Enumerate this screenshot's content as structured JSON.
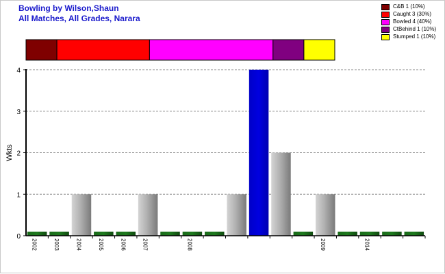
{
  "title_lines": [
    "Bowling by Wilson,Shaun",
    "All Matches, All Grades, Narara"
  ],
  "chart_data": {
    "type": "bar",
    "ylabel": "Wkts",
    "xlabel": "",
    "ylim": [
      0,
      4
    ],
    "yticks": [
      0,
      1,
      2,
      3,
      4
    ],
    "grid": true,
    "legend_position": "top-right",
    "categories": [
      "2002",
      "2003",
      "2004",
      "2005",
      "2006",
      "2007",
      "",
      "2008",
      "",
      "",
      "",
      "",
      "",
      "2009",
      "",
      "2014",
      "",
      ""
    ],
    "values": [
      0,
      0,
      1,
      0,
      0,
      1,
      0,
      0,
      0,
      1,
      4,
      2,
      0,
      1,
      0,
      0,
      0,
      0
    ],
    "bar_styles": [
      "zero",
      "zero",
      "gray",
      "zero",
      "zero",
      "gray",
      "zero",
      "zero",
      "zero",
      "gray",
      "blue",
      "gray",
      "zero",
      "gray",
      "zero",
      "zero",
      "zero",
      "zero"
    ],
    "dismissals": [
      {
        "label": "C&B 1 (10%)",
        "value": 1,
        "color": "#7f0000"
      },
      {
        "label": "Caught 3 (30%)",
        "value": 3,
        "color": "#ff0000"
      },
      {
        "label": "Bowled 4 (40%)",
        "value": 4,
        "color": "#ff00ff"
      },
      {
        "label": "CtBehind 1 (10%)",
        "value": 1,
        "color": "#800080"
      },
      {
        "label": "Stumped 1 (10%)",
        "value": 1,
        "color": "#ffff00"
      }
    ]
  }
}
